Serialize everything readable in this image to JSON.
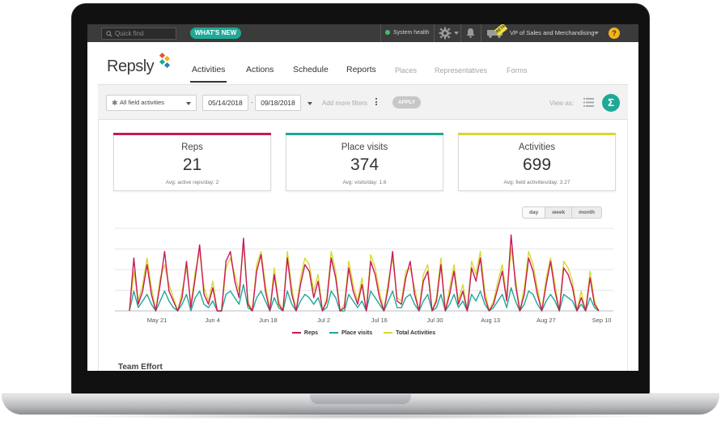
{
  "topbar": {
    "search_placeholder": "Quick find",
    "whats_new": "WHAT'S NEW",
    "system_health": "System health",
    "beta_badge": "BETA",
    "user_name": "VP of Sales and Merchandising",
    "help": "?"
  },
  "nav": {
    "logo_text": "Repsly",
    "items": [
      {
        "label": "Activities",
        "active": true
      },
      {
        "label": "Actions"
      },
      {
        "label": "Schedule"
      },
      {
        "label": "Reports"
      },
      {
        "label": "Places",
        "muted": true
      },
      {
        "label": "Representatives",
        "muted": true
      },
      {
        "label": "Forms",
        "muted": true
      }
    ]
  },
  "filters": {
    "type_select": "All field activities",
    "date_from": "05/14/2018",
    "date_sep": "-",
    "date_to": "09/18/2018",
    "add_more": "Add more filters",
    "apply": "APPLY",
    "view_as": "View as:",
    "sigma": "Σ"
  },
  "cards": [
    {
      "label": "Reps",
      "value": "21",
      "avg": "Avg: active reps/day: 2",
      "color": "#c8195a"
    },
    {
      "label": "Place visits",
      "value": "374",
      "avg": "Avg: visits/day: 1.6",
      "color": "#1fa896"
    },
    {
      "label": "Activities",
      "value": "699",
      "avg": "Avg: field activities/day: 3.27",
      "color": "#d6d930"
    }
  ],
  "granularity": [
    "day",
    "week",
    "month"
  ],
  "section_title": "Team Effort",
  "chart_data": {
    "type": "line",
    "x_ticks": [
      "May 21",
      "Jun 4",
      "Jun 18",
      "Jul 2",
      "Jul 16",
      "Jul 30",
      "Aug 13",
      "Aug 27",
      "Sep 10"
    ],
    "legend_position": "bottom",
    "grid": true,
    "ylim": [
      0,
      25
    ],
    "series": [
      {
        "name": "Reps",
        "color": "#c8195a",
        "values": [
          0,
          16,
          2,
          6,
          14,
          5,
          0,
          8,
          18,
          6,
          3,
          0,
          4,
          15,
          1,
          10,
          20,
          5,
          2,
          7,
          0,
          0,
          15,
          18,
          9,
          4,
          22,
          2,
          0,
          12,
          17,
          6,
          0,
          11,
          2,
          0,
          16,
          5,
          0,
          8,
          14,
          12,
          4,
          9,
          0,
          3,
          16,
          10,
          0,
          1,
          13,
          6,
          2,
          8,
          0,
          15,
          11,
          4,
          0,
          7,
          18,
          3,
          2,
          10,
          15,
          5,
          0,
          9,
          12,
          0,
          3,
          14,
          0,
          5,
          12,
          2,
          6,
          0,
          13,
          9,
          16,
          4,
          0,
          2,
          7,
          12,
          3,
          23,
          8,
          0,
          5,
          16,
          12,
          5,
          0,
          8,
          15,
          6,
          0,
          13,
          11,
          7,
          0,
          4,
          0,
          10,
          2,
          0
        ]
      },
      {
        "name": "Place visits",
        "color": "#1fa896",
        "values": [
          0,
          6,
          1,
          3,
          5,
          2,
          0,
          3,
          6,
          3,
          1,
          0,
          2,
          5,
          0,
          4,
          6,
          2,
          1,
          3,
          0,
          0,
          5,
          6,
          4,
          2,
          8,
          1,
          0,
          4,
          6,
          3,
          0,
          4,
          1,
          0,
          6,
          2,
          0,
          3,
          5,
          4,
          2,
          4,
          0,
          1,
          6,
          4,
          0,
          0,
          5,
          3,
          1,
          3,
          0,
          6,
          4,
          2,
          0,
          3,
          6,
          1,
          1,
          4,
          5,
          2,
          0,
          3,
          5,
          0,
          1,
          5,
          0,
          2,
          5,
          1,
          3,
          0,
          5,
          3,
          6,
          2,
          0,
          1,
          3,
          5,
          1,
          7,
          3,
          0,
          2,
          6,
          5,
          2,
          0,
          3,
          5,
          3,
          0,
          5,
          4,
          3,
          0,
          2,
          0,
          4,
          1,
          0
        ]
      },
      {
        "name": "Total Activities",
        "color": "#d6d930",
        "values": [
          0,
          12,
          3,
          8,
          16,
          7,
          0,
          10,
          14,
          8,
          4,
          0,
          6,
          13,
          2,
          12,
          18,
          7,
          3,
          9,
          0,
          0,
          13,
          16,
          11,
          6,
          20,
          3,
          0,
          14,
          18,
          8,
          0,
          13,
          3,
          0,
          18,
          7,
          0,
          10,
          16,
          14,
          6,
          11,
          0,
          4,
          18,
          12,
          0,
          2,
          15,
          8,
          3,
          10,
          0,
          17,
          13,
          6,
          0,
          9,
          16,
          4,
          3,
          12,
          13,
          7,
          0,
          11,
          14,
          0,
          4,
          16,
          0,
          7,
          14,
          3,
          8,
          0,
          15,
          11,
          18,
          6,
          0,
          3,
          9,
          14,
          4,
          19,
          10,
          0,
          7,
          18,
          14,
          7,
          0,
          10,
          16,
          8,
          0,
          15,
          13,
          9,
          0,
          6,
          0,
          12,
          3,
          0
        ]
      }
    ]
  }
}
